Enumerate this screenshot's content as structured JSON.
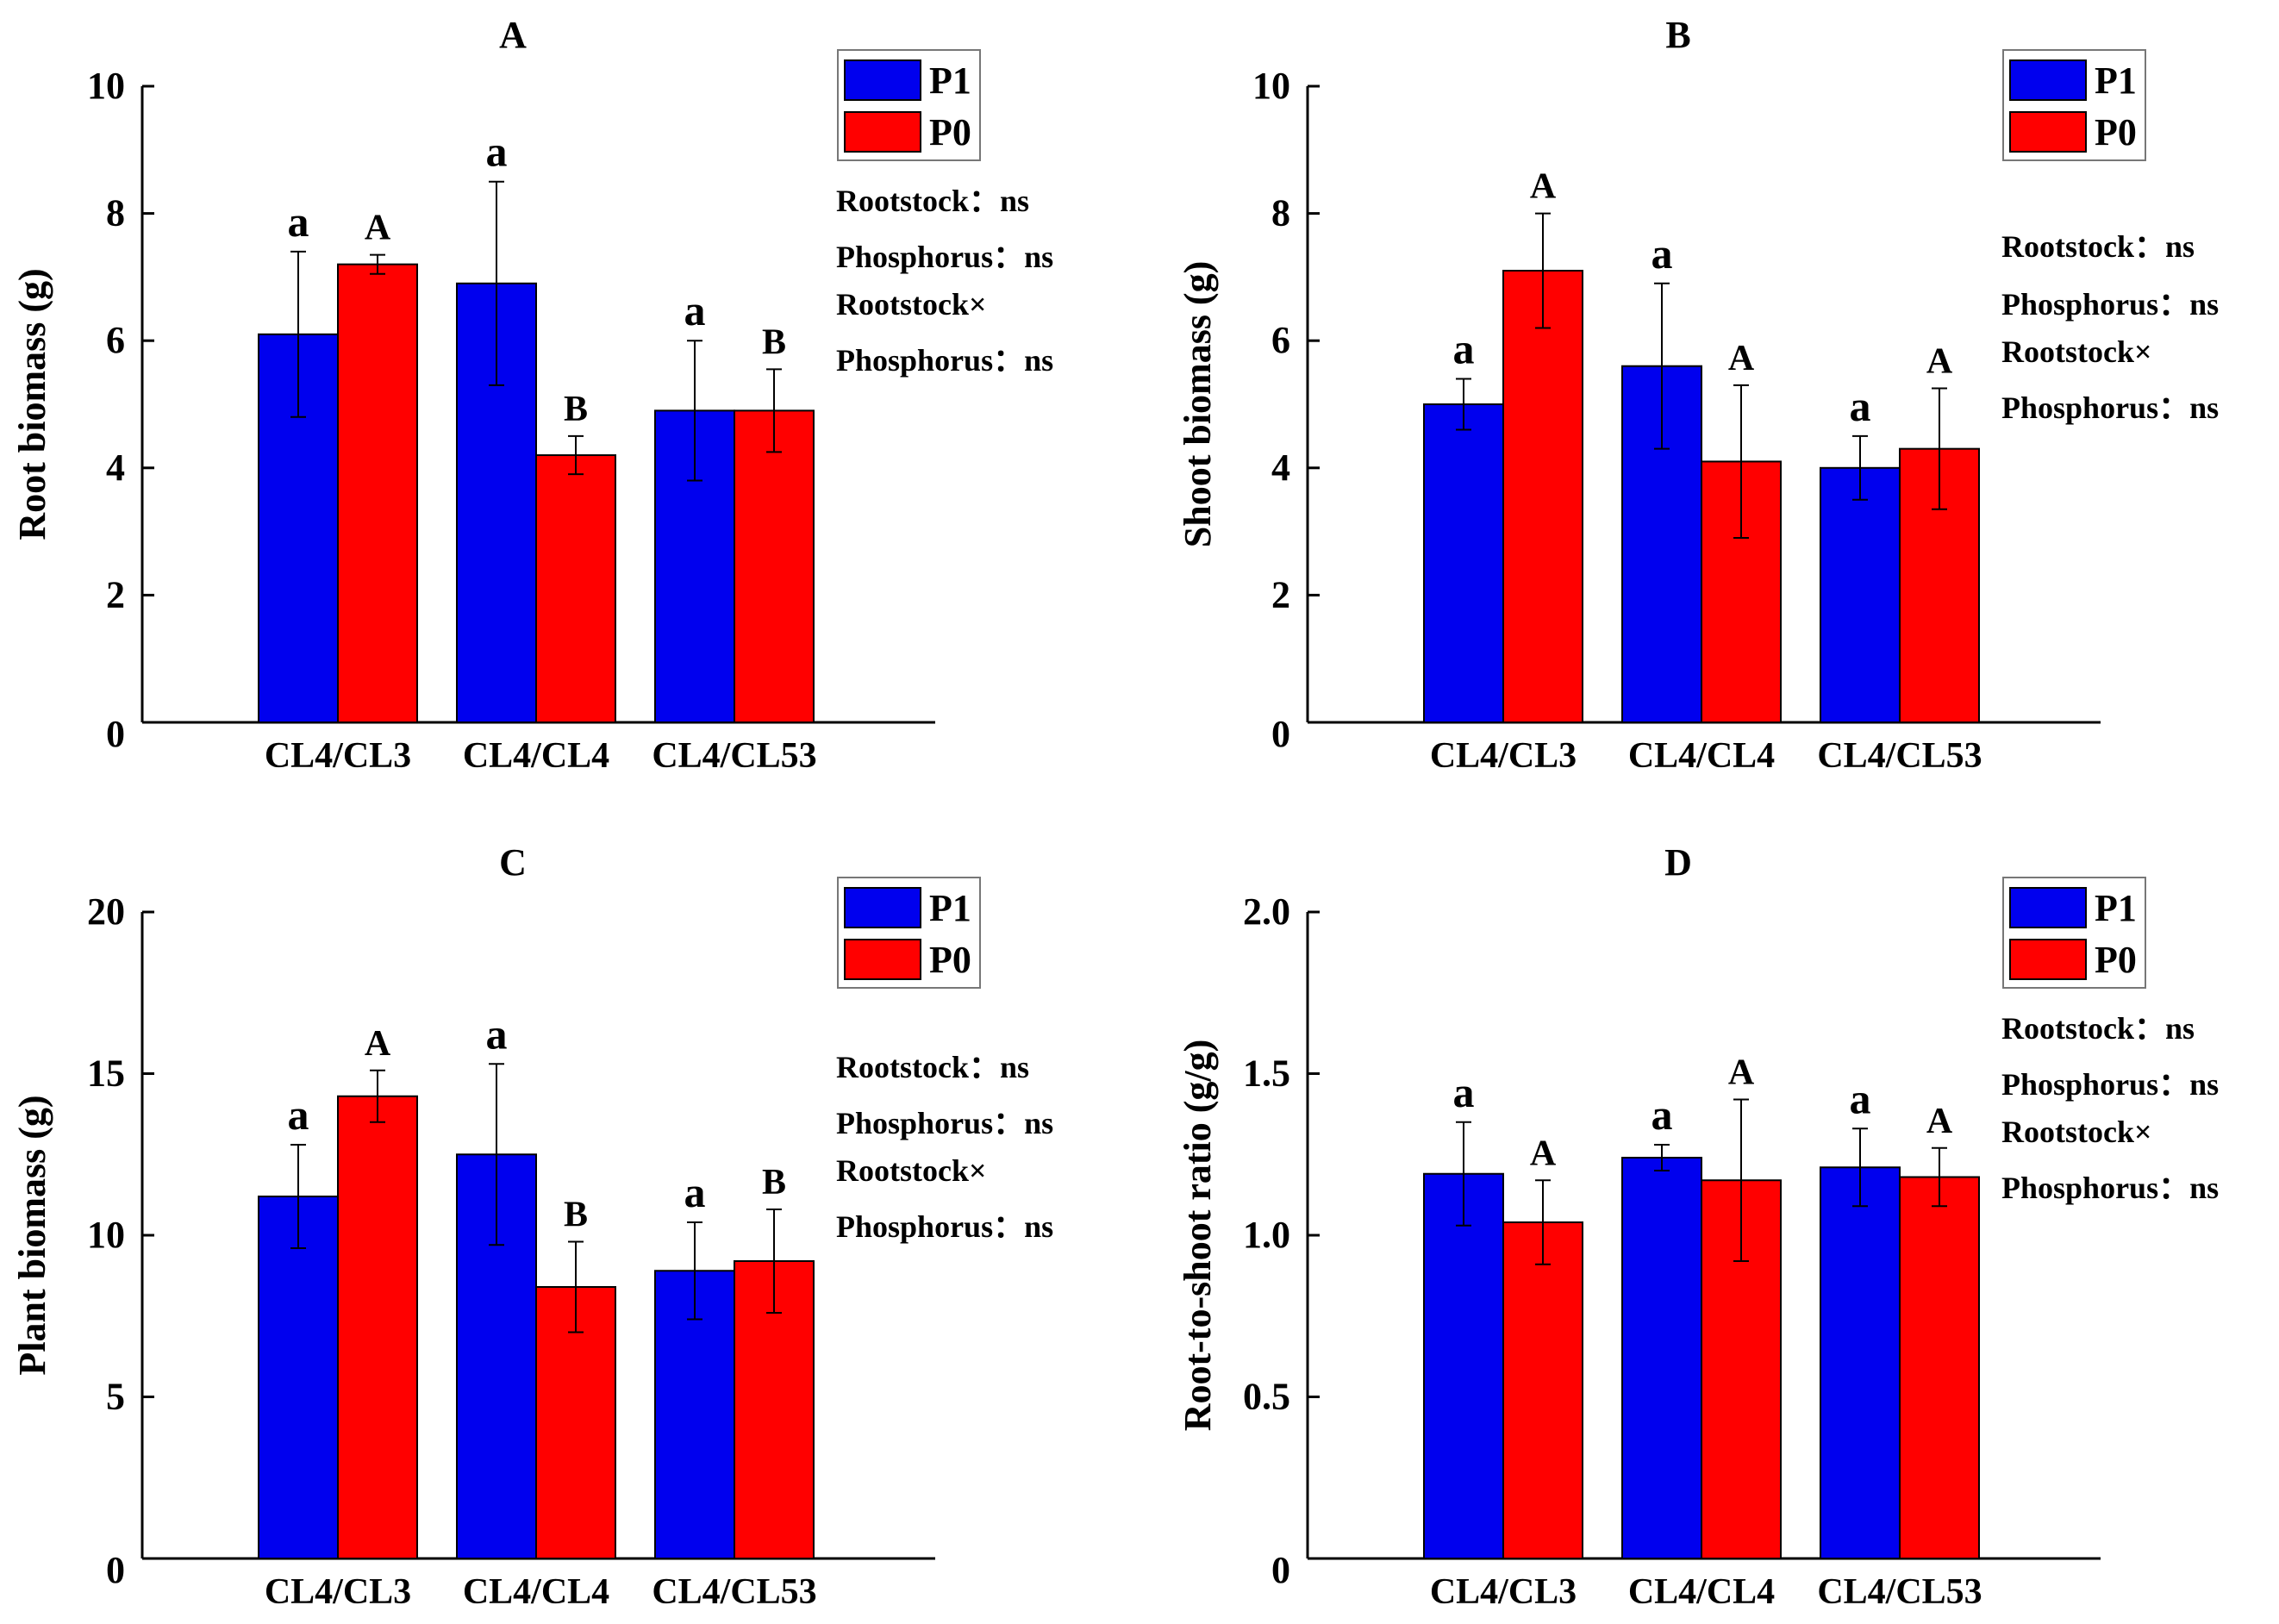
{
  "colors": {
    "P1": "#0000ee",
    "P0": "#ff0000"
  },
  "legend": {
    "p1_label": "P1",
    "p0_label": "P0"
  },
  "chart_data": [
    {
      "panel": "A",
      "type": "bar",
      "title": "A",
      "xlabel": "",
      "ylabel": "Root biomass (g)",
      "ylim": [
        0,
        10
      ],
      "yticks": [
        "0",
        "2",
        "4",
        "6",
        "8",
        "10"
      ],
      "categories": [
        "CL4/CL3",
        "CL4/CL4",
        "CL4/CL53"
      ],
      "series": [
        {
          "name": "P1",
          "values": [
            6.1,
            6.9,
            4.9
          ],
          "errors": [
            1.3,
            1.6,
            1.1
          ],
          "letters": [
            "a",
            "a",
            "a"
          ]
        },
        {
          "name": "P0",
          "values": [
            7.2,
            4.2,
            4.9
          ],
          "errors": [
            0.15,
            0.3,
            0.65
          ],
          "letters": [
            "A",
            "B",
            "B"
          ]
        }
      ],
      "stats": [
        "Rootstock：ns",
        "Phosphorus：ns",
        "Rootstock×",
        "Phosphorus：ns"
      ]
    },
    {
      "panel": "B",
      "type": "bar",
      "title": "B",
      "xlabel": "",
      "ylabel": "Shoot biomass (g)",
      "ylim": [
        0,
        10
      ],
      "yticks": [
        "0",
        "2",
        "4",
        "6",
        "8",
        "10"
      ],
      "categories": [
        "CL4/CL3",
        "CL4/CL4",
        "CL4/CL53"
      ],
      "series": [
        {
          "name": "P1",
          "values": [
            5.0,
            5.6,
            4.0
          ],
          "errors": [
            0.4,
            1.3,
            0.5
          ],
          "letters": [
            "a",
            "a",
            "a"
          ]
        },
        {
          "name": "P0",
          "values": [
            7.1,
            4.1,
            4.3
          ],
          "errors": [
            0.9,
            1.2,
            0.95
          ],
          "letters": [
            "A",
            "A",
            "A"
          ]
        }
      ],
      "stats": [
        "Rootstock：ns",
        "Phosphorus：ns",
        "Rootstock×",
        "Phosphorus：ns"
      ]
    },
    {
      "panel": "C",
      "type": "bar",
      "title": "C",
      "xlabel": "",
      "ylabel": "Plant biomass (g)",
      "ylim": [
        0,
        20
      ],
      "yticks": [
        "0",
        "5",
        "10",
        "15",
        "20"
      ],
      "categories": [
        "CL4/CL3",
        "CL4/CL4",
        "CL4/CL53"
      ],
      "series": [
        {
          "name": "P1",
          "values": [
            11.2,
            12.5,
            8.9
          ],
          "errors": [
            1.6,
            2.8,
            1.5
          ],
          "letters": [
            "a",
            "a",
            "a"
          ]
        },
        {
          "name": "P0",
          "values": [
            14.3,
            8.4,
            9.2
          ],
          "errors": [
            0.8,
            1.4,
            1.6
          ],
          "letters": [
            "A",
            "B",
            "B"
          ]
        }
      ],
      "stats": [
        "Rootstock：ns",
        "Phosphorus：ns",
        "Rootstock×",
        "Phosphorus：ns"
      ]
    },
    {
      "panel": "D",
      "type": "bar",
      "title": "D",
      "xlabel": "",
      "ylabel": "Root-to-shoot ratio (g/g)",
      "ylim": [
        0,
        2.0
      ],
      "yticks": [
        "0",
        "0.5",
        "1.0",
        "1.5",
        "2.0"
      ],
      "categories": [
        "CL4/CL3",
        "CL4/CL4",
        "CL4/CL53"
      ],
      "series": [
        {
          "name": "P1",
          "values": [
            1.19,
            1.24,
            1.21
          ],
          "errors": [
            0.16,
            0.04,
            0.12
          ],
          "letters": [
            "a",
            "a",
            "a"
          ]
        },
        {
          "name": "P0",
          "values": [
            1.04,
            1.17,
            1.18
          ],
          "errors": [
            0.13,
            0.25,
            0.09
          ],
          "letters": [
            "A",
            "A",
            "A"
          ]
        }
      ],
      "stats": [
        "Rootstock：ns",
        "Phosphorus：ns",
        "Rootstock×",
        "Phosphorus：ns"
      ]
    }
  ]
}
